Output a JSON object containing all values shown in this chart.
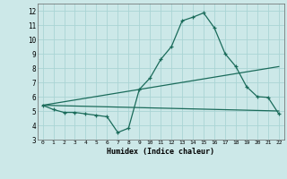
{
  "xlabel": "Humidex (Indice chaleur)",
  "bg_color": "#cce8e8",
  "grid_color": "#aad4d4",
  "line_color": "#1a6b5a",
  "xlim": [
    -0.5,
    22.5
  ],
  "ylim": [
    3,
    12.5
  ],
  "xticks": [
    0,
    1,
    2,
    3,
    4,
    5,
    6,
    7,
    8,
    9,
    10,
    11,
    12,
    13,
    14,
    15,
    16,
    17,
    18,
    19,
    20,
    21,
    22
  ],
  "yticks": [
    3,
    4,
    5,
    6,
    7,
    8,
    9,
    10,
    11,
    12
  ],
  "curve1_x": [
    0,
    1,
    2,
    3,
    4,
    5,
    6,
    7,
    8,
    9,
    10,
    11,
    12,
    13,
    14,
    15,
    16,
    17,
    18,
    19,
    20,
    21,
    22
  ],
  "curve1_y": [
    5.4,
    5.1,
    4.9,
    4.9,
    4.8,
    4.7,
    4.6,
    3.5,
    3.8,
    6.5,
    7.3,
    8.6,
    9.5,
    11.3,
    11.55,
    11.85,
    10.8,
    9.0,
    8.1,
    6.7,
    6.0,
    5.95,
    4.8
  ],
  "curve2_x": [
    0,
    22
  ],
  "curve2_y": [
    5.4,
    8.1
  ],
  "curve3_x": [
    0,
    22
  ],
  "curve3_y": [
    5.4,
    5.0
  ]
}
